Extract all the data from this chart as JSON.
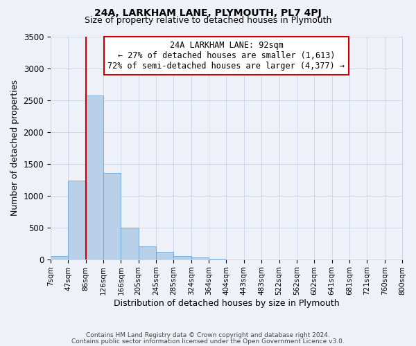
{
  "title": "24A, LARKHAM LANE, PLYMOUTH, PL7 4PJ",
  "subtitle": "Size of property relative to detached houses in Plymouth",
  "xlabel": "Distribution of detached houses by size in Plymouth",
  "ylabel": "Number of detached properties",
  "bar_values": [
    45,
    1230,
    2570,
    1350,
    500,
    200,
    110,
    50,
    30,
    10,
    0,
    0,
    0,
    0,
    0,
    0,
    0,
    0,
    0,
    0
  ],
  "bin_labels": [
    "7sqm",
    "47sqm",
    "86sqm",
    "126sqm",
    "166sqm",
    "205sqm",
    "245sqm",
    "285sqm",
    "324sqm",
    "364sqm",
    "404sqm",
    "443sqm",
    "483sqm",
    "522sqm",
    "562sqm",
    "602sqm",
    "641sqm",
    "681sqm",
    "721sqm",
    "760sqm",
    "800sqm"
  ],
  "bar_color": "#b8d0e8",
  "bar_edge_color": "#5a9fd4",
  "vline_x": 2,
  "vline_color": "#cc0000",
  "annotation_title": "24A LARKHAM LANE: 92sqm",
  "annotation_line1": "← 27% of detached houses are smaller (1,613)",
  "annotation_line2": "72% of semi-detached houses are larger (4,377) →",
  "annotation_box_edge": "#cc0000",
  "ylim": [
    0,
    3500
  ],
  "yticks": [
    0,
    500,
    1000,
    1500,
    2000,
    2500,
    3000,
    3500
  ],
  "footer1": "Contains HM Land Registry data © Crown copyright and database right 2024.",
  "footer2": "Contains public sector information licensed under the Open Government Licence v3.0.",
  "background_color": "#eef2f8",
  "grid_color": "#c8d4e8"
}
